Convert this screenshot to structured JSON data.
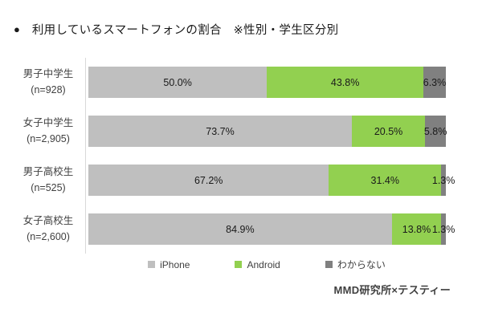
{
  "title": "利用しているスマートフォンの割合　※性別・学生区分別",
  "bullet": "●",
  "footer": "MMD研究所×テスティー",
  "colors": {
    "iphone": "#bfbfbf",
    "android": "#92d050",
    "unknown": "#808080",
    "axis_line": "#d9d9d9",
    "label_text": "#404040",
    "value_text": "#1a1a1a"
  },
  "chart_data": {
    "type": "bar",
    "orientation": "horizontal",
    "stacked": true,
    "xlim": [
      0,
      100
    ],
    "grid": false,
    "legend_position": "bottom",
    "value_suffix": "%",
    "categories": [
      {
        "label": "男子中学生",
        "n": "(n=928)"
      },
      {
        "label": "女子中学生",
        "n": "(n=2,905)"
      },
      {
        "label": "男子高校生",
        "n": "(n=525)"
      },
      {
        "label": "女子高校生",
        "n": "(n=2,600)"
      }
    ],
    "series": [
      {
        "name": "iPhone",
        "color": "#bfbfbf",
        "values": [
          50.0,
          73.7,
          67.2,
          84.9
        ]
      },
      {
        "name": "Android",
        "color": "#92d050",
        "values": [
          43.8,
          20.5,
          31.4,
          13.8
        ]
      },
      {
        "name": "わからない",
        "color": "#808080",
        "values": [
          6.3,
          5.8,
          1.3,
          1.3
        ]
      }
    ]
  }
}
